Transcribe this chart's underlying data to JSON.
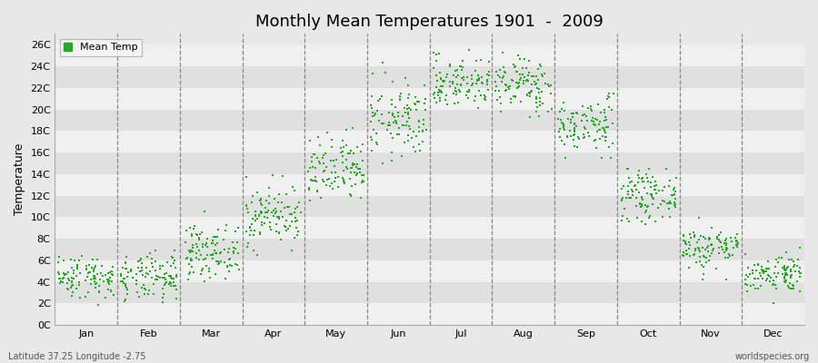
{
  "title": "Monthly Mean Temperatures 1901  -  2009",
  "ylabel": "Temperature",
  "ylim": [
    0,
    27
  ],
  "yticks": [
    0,
    2,
    4,
    6,
    8,
    10,
    12,
    14,
    16,
    18,
    20,
    22,
    24,
    26
  ],
  "ytick_labels": [
    "0C",
    "2C",
    "4C",
    "6C",
    "8C",
    "10C",
    "12C",
    "14C",
    "16C",
    "18C",
    "20C",
    "22C",
    "24C",
    "26C"
  ],
  "month_labels": [
    "Jan",
    "Feb",
    "Mar",
    "Apr",
    "May",
    "Jun",
    "Jul",
    "Aug",
    "Sep",
    "Oct",
    "Nov",
    "Dec"
  ],
  "dot_color": "#22aa22",
  "legend_label": "Mean Temp",
  "bottom_left": "Latitude 37.25 Longitude -2.75",
  "bottom_right": "worldspecies.org",
  "background_color": "#e8e8e8",
  "band_color_light": "#f0f0f0",
  "band_color_dark": "#e0e0e0",
  "n_years": 109,
  "monthly_means": [
    4.5,
    4.3,
    6.8,
    10.2,
    14.2,
    19.0,
    22.5,
    22.3,
    18.5,
    12.0,
    7.2,
    4.8
  ],
  "monthly_stds": [
    1.0,
    1.1,
    1.2,
    1.4,
    1.6,
    1.8,
    1.2,
    1.3,
    1.3,
    1.1,
    1.0,
    0.9
  ],
  "monthly_min": [
    1.0,
    0.8,
    3.5,
    6.5,
    10.0,
    14.5,
    18.5,
    18.5,
    15.5,
    9.0,
    4.0,
    2.0
  ],
  "monthly_max": [
    7.0,
    7.0,
    10.5,
    14.5,
    19.5,
    25.0,
    25.5,
    25.5,
    21.5,
    14.5,
    10.5,
    7.5
  ],
  "vline_color": "#888888",
  "spine_color": "#aaaaaa"
}
